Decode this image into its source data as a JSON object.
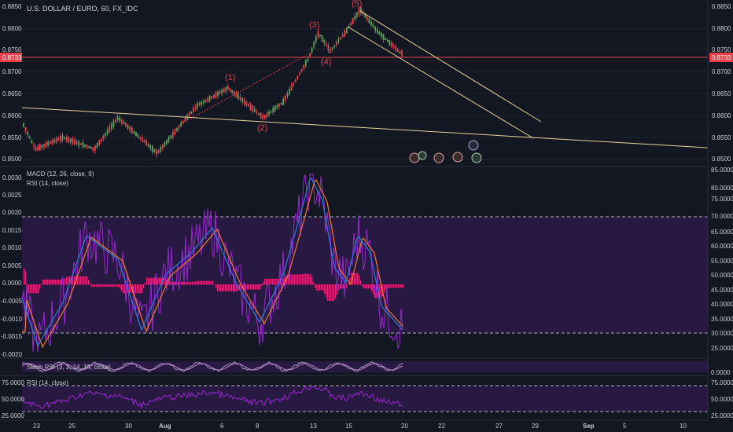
{
  "header": {
    "symbol": "U.S. DOLLAR / EURO, 60, FX_IDC"
  },
  "price_axis": {
    "ticks": [
      "0.8850",
      "0.8800",
      "0.8750",
      "0.8700",
      "0.8650",
      "0.8600",
      "0.8550",
      "0.8500"
    ],
    "last_price": "0.8733",
    "last_price_color": "#e8414d"
  },
  "wave_labels": [
    "(1)",
    "(2)",
    "(3)",
    "(4)",
    "(5)"
  ],
  "indicators": {
    "macd_title": "MACD (12, 26, close, 9)",
    "rsi_overlay_title": "RSI (14, close)",
    "stoch_title": "Stoch RSI (3, 3, 14, 14, close)",
    "rsi_title": "RSI (14, close)"
  },
  "macd_axis": {
    "ticks": [
      "0.0030",
      "0.0025",
      "0.0020",
      "0.0015",
      "0.0010",
      "0.0005",
      "0.0000",
      "-0.0005",
      "-0.0010",
      "-0.0015",
      "-0.0020"
    ]
  },
  "rsi_overlay_axis": {
    "ticks": [
      "85.0000",
      "80.0000",
      "75.0000",
      "70.0000",
      "65.0000",
      "60.0000",
      "55.0000",
      "50.0000",
      "45.0000",
      "40.0000",
      "35.0000",
      "30.0000",
      "25.0000"
    ]
  },
  "stoch_axis": {
    "ticks": [
      "0.0000"
    ]
  },
  "rsi_axis": {
    "left_ticks": [
      "75.0000",
      "50.0000",
      "25.0000"
    ],
    "right_ticks": [
      "75.0000",
      "50.0000",
      "25.0000"
    ]
  },
  "time_axis": {
    "ticks": [
      "23",
      "25",
      "30",
      "Aug",
      "6",
      "8",
      "13",
      "15",
      "20",
      "22",
      "27",
      "29",
      "Sep",
      "5",
      "10"
    ]
  },
  "colors": {
    "background": "#131722",
    "up_candle": "#5fa05b",
    "down_candle": "#e8414d",
    "trendline": "#e8d29a",
    "macd_line": "#2c7de0",
    "signal_line": "#f07a30",
    "histogram": "#e0287a",
    "rsi_line": "#9c27d4",
    "rsi_band": "#2a1a45"
  },
  "events_icons": [
    "calendar-event-icon",
    "calendar-event-icon",
    "calendar-event-icon",
    "calendar-event-icon",
    "calendar-event-icon",
    "calendar-event-icon"
  ]
}
